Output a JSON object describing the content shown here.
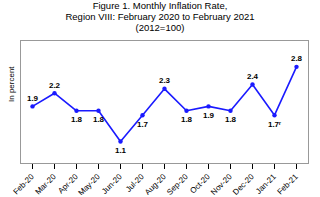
{
  "chart_data": {
    "type": "line",
    "title": "Figure 1. Monthly Inflation Rate,\nRegion VIII: February 2020 to February 2021\n(2012=100)",
    "ylabel": "In percent",
    "categories": [
      "Feb-20",
      "Mar-20",
      "Apr-20",
      "May-20",
      "Jun-20",
      "Jul-20",
      "Aug-20",
      "Sep-20",
      "Oct-20",
      "Nov-20",
      "Dec-20",
      "Jan-21",
      "Feb-21"
    ],
    "values": [
      1.9,
      2.2,
      1.8,
      1.8,
      1.1,
      1.7,
      2.3,
      1.8,
      1.9,
      1.8,
      2.4,
      1.7,
      2.8
    ],
    "value_labels": [
      "1.9",
      "2.2",
      "1.8",
      "1.8",
      "1.1",
      "1.7",
      "2.3",
      "1.8",
      "1.9",
      "1.8",
      "2.4",
      "1.7ʳ",
      "2.8"
    ],
    "data_labels": true,
    "color": "#1a1aff",
    "marker": "circle",
    "ylim": [
      0.6,
      3.4
    ],
    "tick_labels": "x",
    "grid": false
  }
}
